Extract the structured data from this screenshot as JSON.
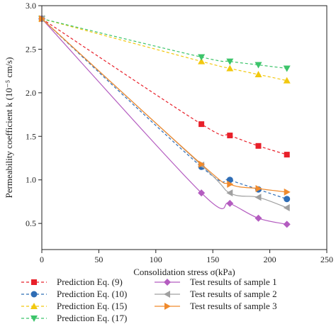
{
  "chart_data": {
    "type": "line",
    "xlabel": "Consolidation stress σ(kPa)",
    "ylabel": "Permeability coefficient k (10⁻⁵ cm/s)",
    "xlim": [
      0,
      250
    ],
    "ylim": [
      0.2,
      3.0
    ],
    "xticks": [
      0,
      50,
      100,
      150,
      200,
      250
    ],
    "yticks": [
      0.5,
      1.0,
      1.5,
      2.0,
      2.5,
      3.0
    ],
    "xtick_labels": [
      "0",
      "50",
      "100",
      "150",
      "200",
      "250"
    ],
    "ytick_labels": [
      "0.5",
      "1.0",
      "1.5",
      "2.0",
      "2.5",
      "3.0"
    ],
    "grid": false,
    "legend_position": "bottom",
    "series": [
      {
        "name": "Prediction Eq. (9)",
        "color": "#e8202a",
        "marker": "square",
        "line": "dashed",
        "points": [
          [
            0,
            2.85
          ],
          [
            140,
            1.64
          ],
          [
            165,
            1.51
          ],
          [
            190,
            1.39
          ],
          [
            215,
            1.29
          ]
        ]
      },
      {
        "name": "Prediction Eq. (10)",
        "color": "#2f6db5",
        "marker": "circle",
        "line": "dashed",
        "points": [
          [
            0,
            2.85
          ],
          [
            140,
            1.15
          ],
          [
            165,
            1.0
          ],
          [
            190,
            0.89
          ],
          [
            215,
            0.78
          ]
        ]
      },
      {
        "name": "Prediction Eq. (15)",
        "color": "#f2c80f",
        "marker": "triangle-up",
        "line": "dashed",
        "points": [
          [
            0,
            2.85
          ],
          [
            140,
            2.36
          ],
          [
            165,
            2.28
          ],
          [
            190,
            2.21
          ],
          [
            215,
            2.14
          ]
        ]
      },
      {
        "name": "Prediction Eq. (17)",
        "color": "#3cc46a",
        "marker": "triangle-down",
        "line": "dashed",
        "points": [
          [
            0,
            2.85
          ],
          [
            140,
            2.41
          ],
          [
            165,
            2.36
          ],
          [
            190,
            2.32
          ],
          [
            215,
            2.28
          ]
        ]
      },
      {
        "name": "Test results of sample 1",
        "color": "#b45cc0",
        "marker": "diamond",
        "line": "solid",
        "points": [
          [
            0,
            2.85
          ],
          [
            140,
            0.85
          ],
          [
            165,
            0.73
          ],
          [
            190,
            0.56
          ],
          [
            215,
            0.49
          ]
        ]
      },
      {
        "name": "Test results of sample 2",
        "color": "#a0a0a0",
        "marker": "triangle-left",
        "line": "solid",
        "points": [
          [
            0,
            2.85
          ],
          [
            140,
            1.17
          ],
          [
            165,
            0.85
          ],
          [
            190,
            0.8
          ],
          [
            215,
            0.68
          ]
        ]
      },
      {
        "name": "Test results of sample 3",
        "color": "#f08a2c",
        "marker": "triangle-right",
        "line": "solid",
        "points": [
          [
            0,
            2.85
          ],
          [
            140,
            1.18
          ],
          [
            165,
            0.95
          ],
          [
            190,
            0.9
          ],
          [
            215,
            0.86
          ]
        ]
      }
    ]
  }
}
